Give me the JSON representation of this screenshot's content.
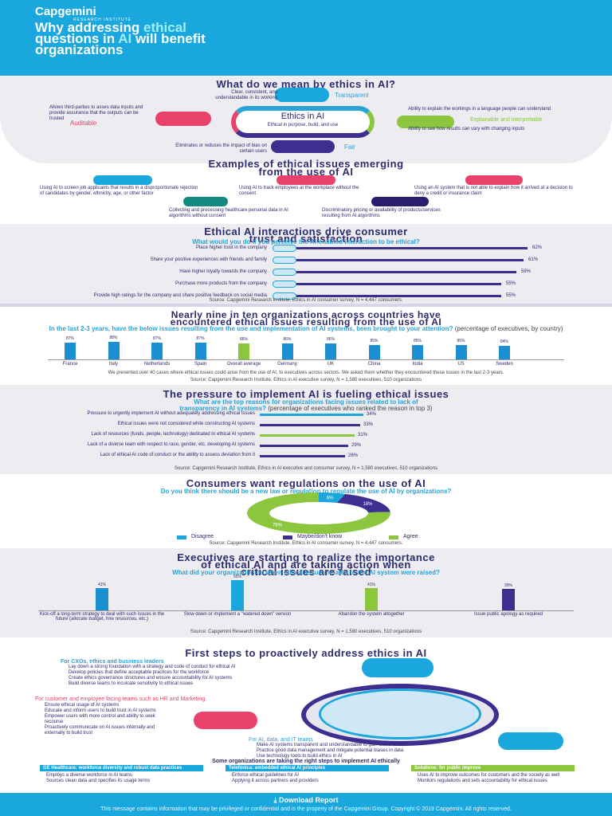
{
  "header": {
    "brand": "Capgemini",
    "brand_sub": "RESEARCH INSTITUTE",
    "title_pre": "Why addressing ",
    "title_hl": "ethical",
    "title_l2_a": "questions in ",
    "title_l2_hl": "AI",
    "title_l2_b": " will benefit",
    "title_l3": "organizations"
  },
  "ethics": {
    "title": "What do we mean by ethics in AI?",
    "center": "Ethics in AI",
    "center_sub": "Ethical in purpose, build, and use",
    "transparent": "Transparent",
    "transparent_desc": "Clear, consistent, and understandable in its working",
    "auditable": "Auditable",
    "auditable_desc": "Allows third-parties to asses data inputs and provide assurance that the outputs can be trusted",
    "explainable": "Explainable and interpretable",
    "explainable_desc": "Ability to explain the workings in a language people can understand",
    "explainable_desc2": "Ability to see how results can vary with changing inputs",
    "fair": "Fair",
    "fair_desc": "Eliminates or reduces the impact of bias on certain users"
  },
  "examples": {
    "title_l1": "Examples of ethical issues emerging",
    "title_l2": "from the use of AI",
    "items": [
      "Using AI to screen job applicants that results in a disproportionate rejection of candidates by gender, ethnicity, age, or other factor",
      "Using AI to track employees at the workplace without the consent",
      "Using an AI system that is not able to explain how it arrived at a decision to deny a credit or insurance claim",
      "Collecting and processing healthcare personal data in AI algorithms without consent",
      "Discriminatory pricing or availability of products/services resulting from AI algorithms"
    ]
  },
  "interactions": {
    "title_l1": "Ethical AI interactions drive consumer",
    "title_l2": "trust and satisfaction",
    "question": "What would you do if you perceive the AI-enabled interaction to be ethical?",
    "rows": [
      {
        "label": "Place higher trust in the company",
        "value": 62,
        "text": "62%"
      },
      {
        "label": "Share your positive experiences with friends and family",
        "value": 61,
        "text": "61%"
      },
      {
        "label": "Have higher loyalty towards the company",
        "value": 59,
        "text": "59%"
      },
      {
        "label": "Purchase more products from the company",
        "value": 55,
        "text": "55%"
      },
      {
        "label": "Provide high ratings for the company and share positive feedback on social media",
        "value": 55,
        "text": "55%"
      }
    ],
    "source": "Source: Capgemini Research Institute, Ethics in AI consumer survey, N = 4,447 consumers."
  },
  "countries": {
    "title_l1": "Nearly nine in ten organizations across countries have",
    "title_l2": "encountered ethical issues resulting from the use of AI",
    "question": "In the last 2-3 years, have the below issues resulting from the use and implementation of AI systems, been brought to your attention?",
    "question_tail": "(percentage of executives, by country)",
    "items": [
      {
        "label": "France",
        "value": 87,
        "text": "87%"
      },
      {
        "label": "Italy",
        "value": 88,
        "text": "88%"
      },
      {
        "label": "Netherlands",
        "value": 87,
        "text": "87%"
      },
      {
        "label": "Spain",
        "value": 87,
        "text": "87%"
      },
      {
        "label": "Overall average",
        "value": 86,
        "text": "86%"
      },
      {
        "label": "Germany",
        "value": 86,
        "text": "86%"
      },
      {
        "label": "UK",
        "value": 86,
        "text": "86%"
      },
      {
        "label": "China",
        "value": 85,
        "text": "85%"
      },
      {
        "label": "India",
        "value": 85,
        "text": "85%"
      },
      {
        "label": "US",
        "value": 85,
        "text": "85%"
      },
      {
        "label": "Sweden",
        "value": 84,
        "text": "84%"
      }
    ],
    "note": "We presented over 40 cases where ethical issues could arise from the use of AI, to executives across sectors. We asked them whether they encountered these issues in the last 2-3 years.",
    "source": "Source: Capgemini Research Institute, Ethics in AI executive survey, N = 1,580 executives, 510 organizations"
  },
  "pressure": {
    "title": "The pressure to implement AI is fueling ethical issues",
    "question_a": "What are the top reasons for organizations facing issues related to lack of",
    "question_b": "transparency in AI systems?",
    "question_tail": "(percentage of executives who ranked the reason in top 3)",
    "rows": [
      {
        "label": "Pressure to urgently implement AI without adequately addressing ethical issues",
        "value": 34,
        "text": "34%"
      },
      {
        "label": "Ethical issues were not considered while constructing AI systems",
        "value": 33,
        "text": "33%"
      },
      {
        "label": "Lack of resources (funds, people, technology) dedicated to ethical AI systems",
        "value": 31,
        "text": "31%"
      },
      {
        "label": "Lack of a diverse team with respect to race, gender, etc. developing AI systems",
        "value": 29,
        "text": "29%"
      },
      {
        "label": "Lack of ethical AI code of conduct or the ability to assess deviation from it",
        "value": 28,
        "text": "28%"
      }
    ],
    "source": "Source: Capgemini Research Institute, Ethics in AI executive and consumer survey, N = 1,580 executives, 510 organizations"
  },
  "regulation": {
    "title": "Consumers want regulations on the use of AI",
    "question": "Do you think there should be a new law or regulation to regulate the use of AI by organizations?",
    "slices": [
      {
        "name": "Disagree",
        "value": 6,
        "text": "6%",
        "color": "#1aa7dd"
      },
      {
        "name": "Maybe/don't know",
        "value": 18,
        "text": "18%",
        "color": "#3d2f8f"
      },
      {
        "name": "Agree",
        "value": 76,
        "text": "76%",
        "color": "#8cc63f"
      }
    ],
    "source": "Source: Capgemini Research Institute, Ethics in AI consumer survey, N = 4,447 consumers."
  },
  "actions": {
    "title_l1": "Executives are starting to realize the importance",
    "title_l2": "of ethical AI and are taking action when",
    "title_l3": "critical issues are raised",
    "question": "What did your organization do when ethical issues related to the AI system were raised?",
    "items": [
      {
        "label": "Kick-off a long-term strategy to deal with such issues in the future (allocate budget, hire resources, etc.)",
        "value": 41,
        "text": "41%",
        "color": "#1a8fd1"
      },
      {
        "label": "Slow down or implement a \"watered down\" version",
        "value": 55,
        "text": "55%",
        "color": "#1aa7dd"
      },
      {
        "label": "Abandon the system altogether",
        "value": 41,
        "text": "41%",
        "color": "#8cc63f"
      },
      {
        "label": "Issue public apology as required",
        "value": 39,
        "text": "39%",
        "color": "#3d2f8f"
      }
    ],
    "source": "Source: Capgemini Research Institute, Ethics in AI executive survey, N = 1,580 executives, 510 organizations"
  },
  "steps": {
    "title": "First steps to proactively address ethics in AI",
    "leaders_head": "For CXOs, ethics and business leaders",
    "leaders": [
      "Lay down a strong foundation with a strategy and code of conduct for ethical AI",
      "Develop policies that define acceptable practices for the workforce",
      "Create ethics governance structures and ensure accountability for AI systems",
      "Build diverse teams to inculcate sensitivity to ethical issues"
    ],
    "customer_head": "For customer and employee facing teams such as HR and Marketing",
    "customer": [
      "Ensure ethical usage of AI systems",
      "Educate and inform users to build trust in AI systems",
      "Empower users with more control and ability to seek recourse",
      "Proactively communicate on AI issues internally and externally to build trust"
    ],
    "it_head": "For AI, data, and IT teams",
    "it": [
      "Make AI systems transparent and understandable to gain users' trust",
      "Practice good data management and mitigate potential biases in data",
      "Use technology tools to build ethics in AI"
    ],
    "right_title": "Some organizations are taking the right steps to implement AI ethically",
    "orgs": [
      {
        "head": "GE Healthcare: workforce diversity and robust data practices",
        "lines": [
          "Employs a diverse workforce in AI teams",
          "Sources clean data and specifies its usage terms"
        ]
      },
      {
        "head": "Telefónica: embedded ethical AI principles",
        "lines": [
          "Enforce ethical guidelines for AI",
          "Applying it across partners and providers"
        ]
      },
      {
        "head": "Solutions: for public improve",
        "lines": [
          "Uses AI to improve outcomes for customers and the society as well",
          "Monitors regulations and sets accountability for ethical issues"
        ]
      }
    ]
  },
  "footer": {
    "button": "Download Report",
    "disclaimer": "This message contains information that may be privileged or confidential and is the property of the Capgemini Group. Copyright © 2019 Capgemini. All rights reserved."
  }
}
